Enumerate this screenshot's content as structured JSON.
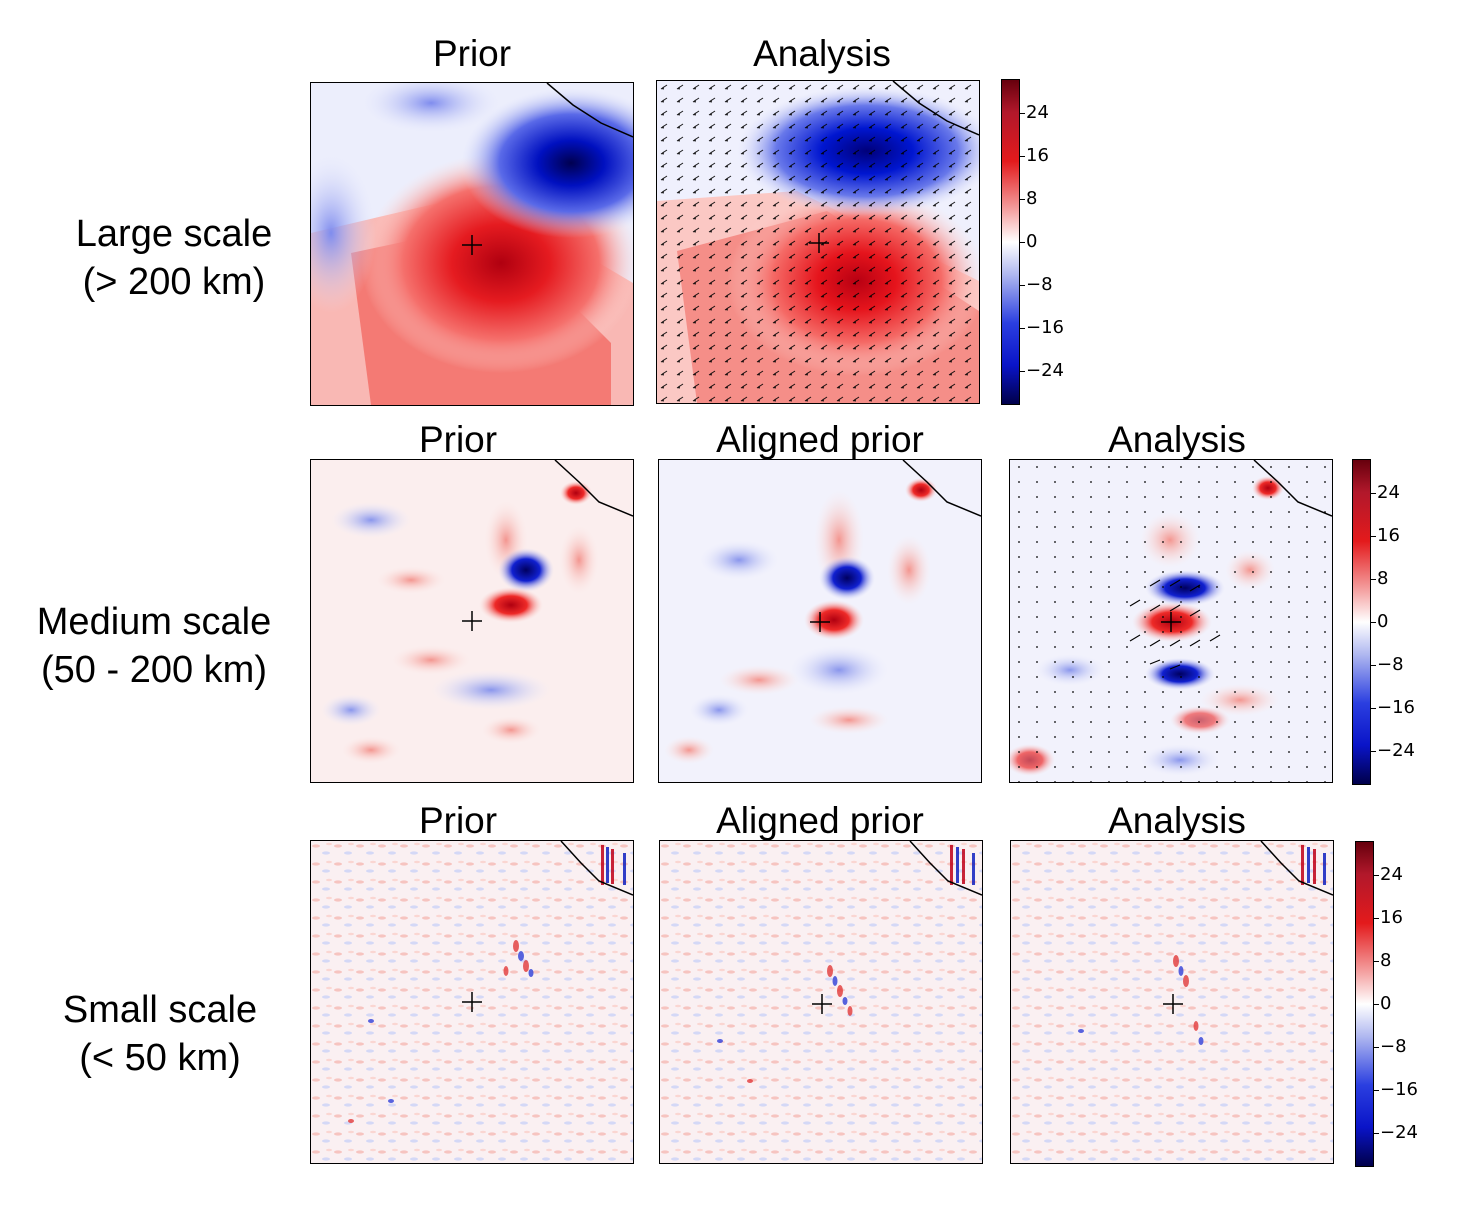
{
  "rows": [
    {
      "label_line1": "Large scale",
      "label_line2": "(> 200 km)",
      "panels": [
        {
          "title": "Prior"
        },
        {
          "title": "Analysis"
        }
      ]
    },
    {
      "label_line1": "Medium scale",
      "label_line2": "(50 - 200 km)",
      "panels": [
        {
          "title": "Prior"
        },
        {
          "title": "Aligned prior"
        },
        {
          "title": "Analysis"
        }
      ]
    },
    {
      "label_line1": "Small scale",
      "label_line2": "(< 50 km)",
      "panels": [
        {
          "title": "Prior"
        },
        {
          "title": "Aligned prior"
        },
        {
          "title": "Analysis"
        }
      ]
    }
  ],
  "colorbar": {
    "ticks": [
      "24",
      "16",
      "8",
      "0",
      "−8",
      "−16",
      "−24"
    ],
    "colormap": [
      "#00004a",
      "#0a14c8",
      "#2b3fe0",
      "#b0b8f0",
      "#ffffff",
      "#f4a0a0",
      "#e31a1c",
      "#b2182b",
      "#67000d"
    ]
  },
  "icons": {
    "center_marker": "plus-marker-icon",
    "wind_vectors": "arrow-icon"
  }
}
